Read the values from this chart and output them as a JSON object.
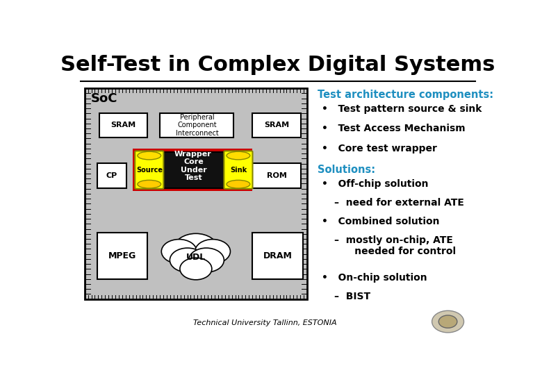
{
  "title": "Self-Test in Complex Digital Systems",
  "title_fontsize": 22,
  "title_fontweight": "bold",
  "slide_bg": "#ffffff",
  "tac_header": "Test architecture components:",
  "tac_bullets": [
    "Test pattern source & sink",
    "Test Access Mechanism",
    "Core test wrapper"
  ],
  "sol_header": "Solutions:",
  "footer": "Technical University Tallinn, ESTONIA",
  "soc_bg": "#c0c0c0",
  "soc_label": "SoC",
  "wrapper_color": "#cc0000",
  "header_color": "#1e8fc0"
}
